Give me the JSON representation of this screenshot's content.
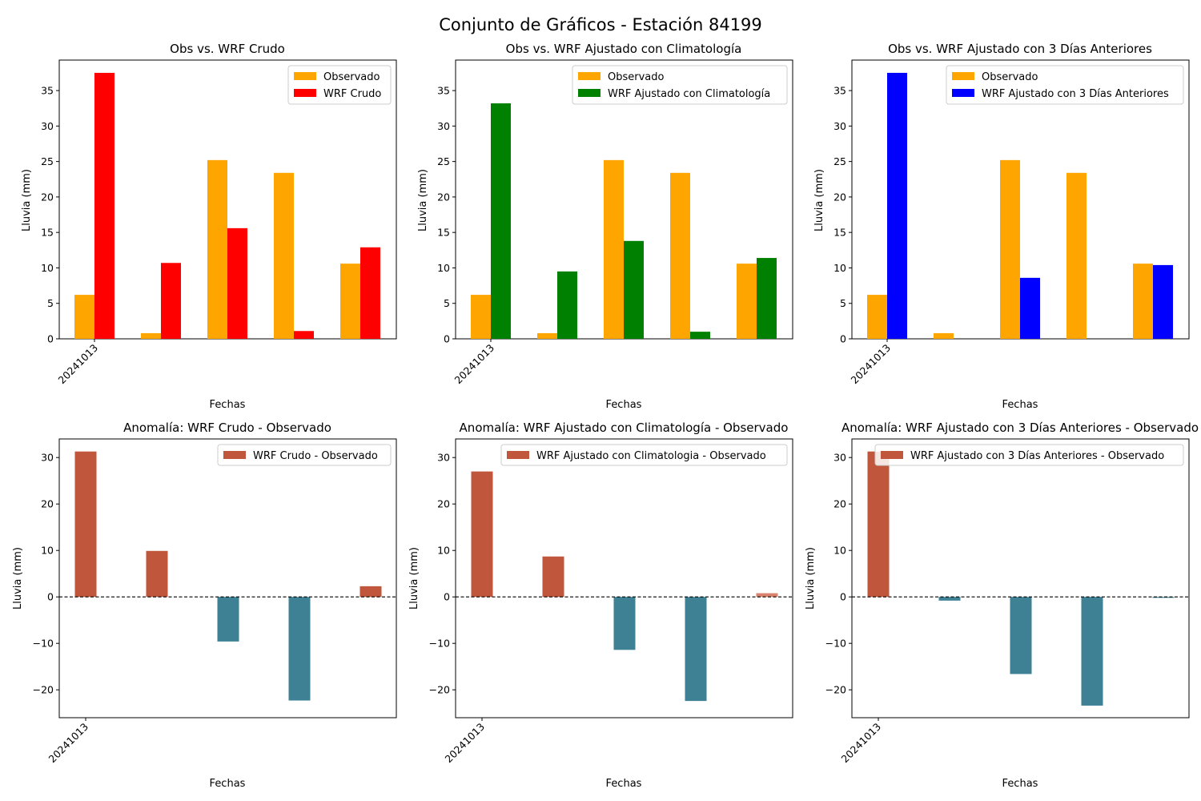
{
  "figure": {
    "suptitle": "Conjunto de Gráficos - Estación 84199"
  },
  "colors": {
    "observado": "#ffa500",
    "wrf_crudo": "#ff0000",
    "wrf_climatologia": "#008000",
    "wrf_3dias": "#0000ff",
    "anomaly_positive": "#c0573d",
    "anomaly_negative": "#3e8195",
    "anomaly_light": "#d9826e",
    "zero_line": "#000000"
  },
  "chart_data": [
    {
      "id": "comp1",
      "type": "bar",
      "title": "Obs vs. WRF Crudo",
      "xlabel": "Fechas",
      "ylabel": "Lluvia (mm)",
      "xtick_labels": [
        "20241013"
      ],
      "ylim": [
        0,
        39.3
      ],
      "yticks": [
        0,
        5,
        10,
        15,
        20,
        25,
        30,
        35
      ],
      "legend_position": "top-right",
      "series": [
        {
          "name": "Observado",
          "color_key": "observado",
          "values": [
            6.2,
            0.8,
            25.2,
            23.4,
            10.6
          ]
        },
        {
          "name": "WRF Crudo",
          "color_key": "wrf_crudo",
          "values": [
            37.5,
            10.7,
            15.6,
            1.1,
            12.9
          ]
        }
      ]
    },
    {
      "id": "comp2",
      "type": "bar",
      "title": "Obs vs. WRF Ajustado con Climatología",
      "xlabel": "Fechas",
      "ylabel": "Lluvia (mm)",
      "xtick_labels": [
        "20241013"
      ],
      "ylim": [
        0,
        39.3
      ],
      "yticks": [
        0,
        5,
        10,
        15,
        20,
        25,
        30,
        35
      ],
      "legend_position": "top-right",
      "series": [
        {
          "name": "Observado",
          "color_key": "observado",
          "values": [
            6.2,
            0.8,
            25.2,
            23.4,
            10.6
          ]
        },
        {
          "name": "WRF Ajustado con Climatología",
          "color_key": "wrf_climatologia",
          "values": [
            33.2,
            9.5,
            13.8,
            1.0,
            11.4
          ]
        }
      ]
    },
    {
      "id": "comp3",
      "type": "bar",
      "title": "Obs vs. WRF Ajustado con 3 Días Anteriores",
      "xlabel": "Fechas",
      "ylabel": "Lluvia (mm)",
      "xtick_labels": [
        "20241013"
      ],
      "ylim": [
        0,
        39.3
      ],
      "yticks": [
        0,
        5,
        10,
        15,
        20,
        25,
        30,
        35
      ],
      "legend_position": "top-right",
      "series": [
        {
          "name": "Observado",
          "color_key": "observado",
          "values": [
            6.2,
            0.8,
            25.2,
            23.4,
            10.6
          ]
        },
        {
          "name": "WRF Ajustado con 3 Días Anteriores",
          "color_key": "wrf_3dias",
          "values": [
            37.5,
            0,
            8.6,
            0,
            10.4
          ]
        }
      ]
    },
    {
      "id": "anom1",
      "type": "bar",
      "title": "Anomalía: WRF Crudo - Observado",
      "xlabel": "Fechas",
      "ylabel": "Lluvia (mm)",
      "xtick_labels": [
        "20241013"
      ],
      "ylim": [
        -26,
        34
      ],
      "yticks": [
        -20,
        -10,
        0,
        10,
        20,
        30
      ],
      "legend_position": "top-right",
      "zero_line": true,
      "series": [
        {
          "name": "WRF Crudo - Observado",
          "values": [
            31.3,
            9.9,
            -9.6,
            -22.3,
            2.3
          ],
          "color_keys": [
            "anomaly_positive",
            "anomaly_positive",
            "anomaly_negative",
            "anomaly_negative",
            "anomaly_positive"
          ]
        }
      ]
    },
    {
      "id": "anom2",
      "type": "bar",
      "title": "Anomalía: WRF Ajustado con Climatología - Observado",
      "xlabel": "Fechas",
      "ylabel": "Lluvia (mm)",
      "xtick_labels": [
        "20241013"
      ],
      "ylim": [
        -26,
        34
      ],
      "yticks": [
        -20,
        -10,
        0,
        10,
        20,
        30
      ],
      "legend_position": "top-right",
      "zero_line": true,
      "series": [
        {
          "name": "WRF Ajustado con Climatologia - Observado",
          "values": [
            27.0,
            8.7,
            -11.4,
            -22.4,
            0.8
          ],
          "color_keys": [
            "anomaly_positive",
            "anomaly_positive",
            "anomaly_negative",
            "anomaly_negative",
            "anomaly_light"
          ]
        }
      ]
    },
    {
      "id": "anom3",
      "type": "bar",
      "title": "Anomalía: WRF Ajustado con 3 Días Anteriores - Observado",
      "xlabel": "Fechas",
      "ylabel": "Lluvia (mm)",
      "xtick_labels": [
        "20241013"
      ],
      "ylim": [
        -26,
        34
      ],
      "yticks": [
        -20,
        -10,
        0,
        10,
        20,
        30
      ],
      "legend_position": "top-right",
      "zero_line": true,
      "series": [
        {
          "name": "WRF Ajustado con 3 Días Anteriores - Observado",
          "values": [
            31.3,
            -0.8,
            -16.6,
            -23.4,
            -0.2
          ],
          "color_keys": [
            "anomaly_positive",
            "anomaly_negative",
            "anomaly_negative",
            "anomaly_negative",
            "anomaly_negative"
          ]
        }
      ]
    }
  ]
}
